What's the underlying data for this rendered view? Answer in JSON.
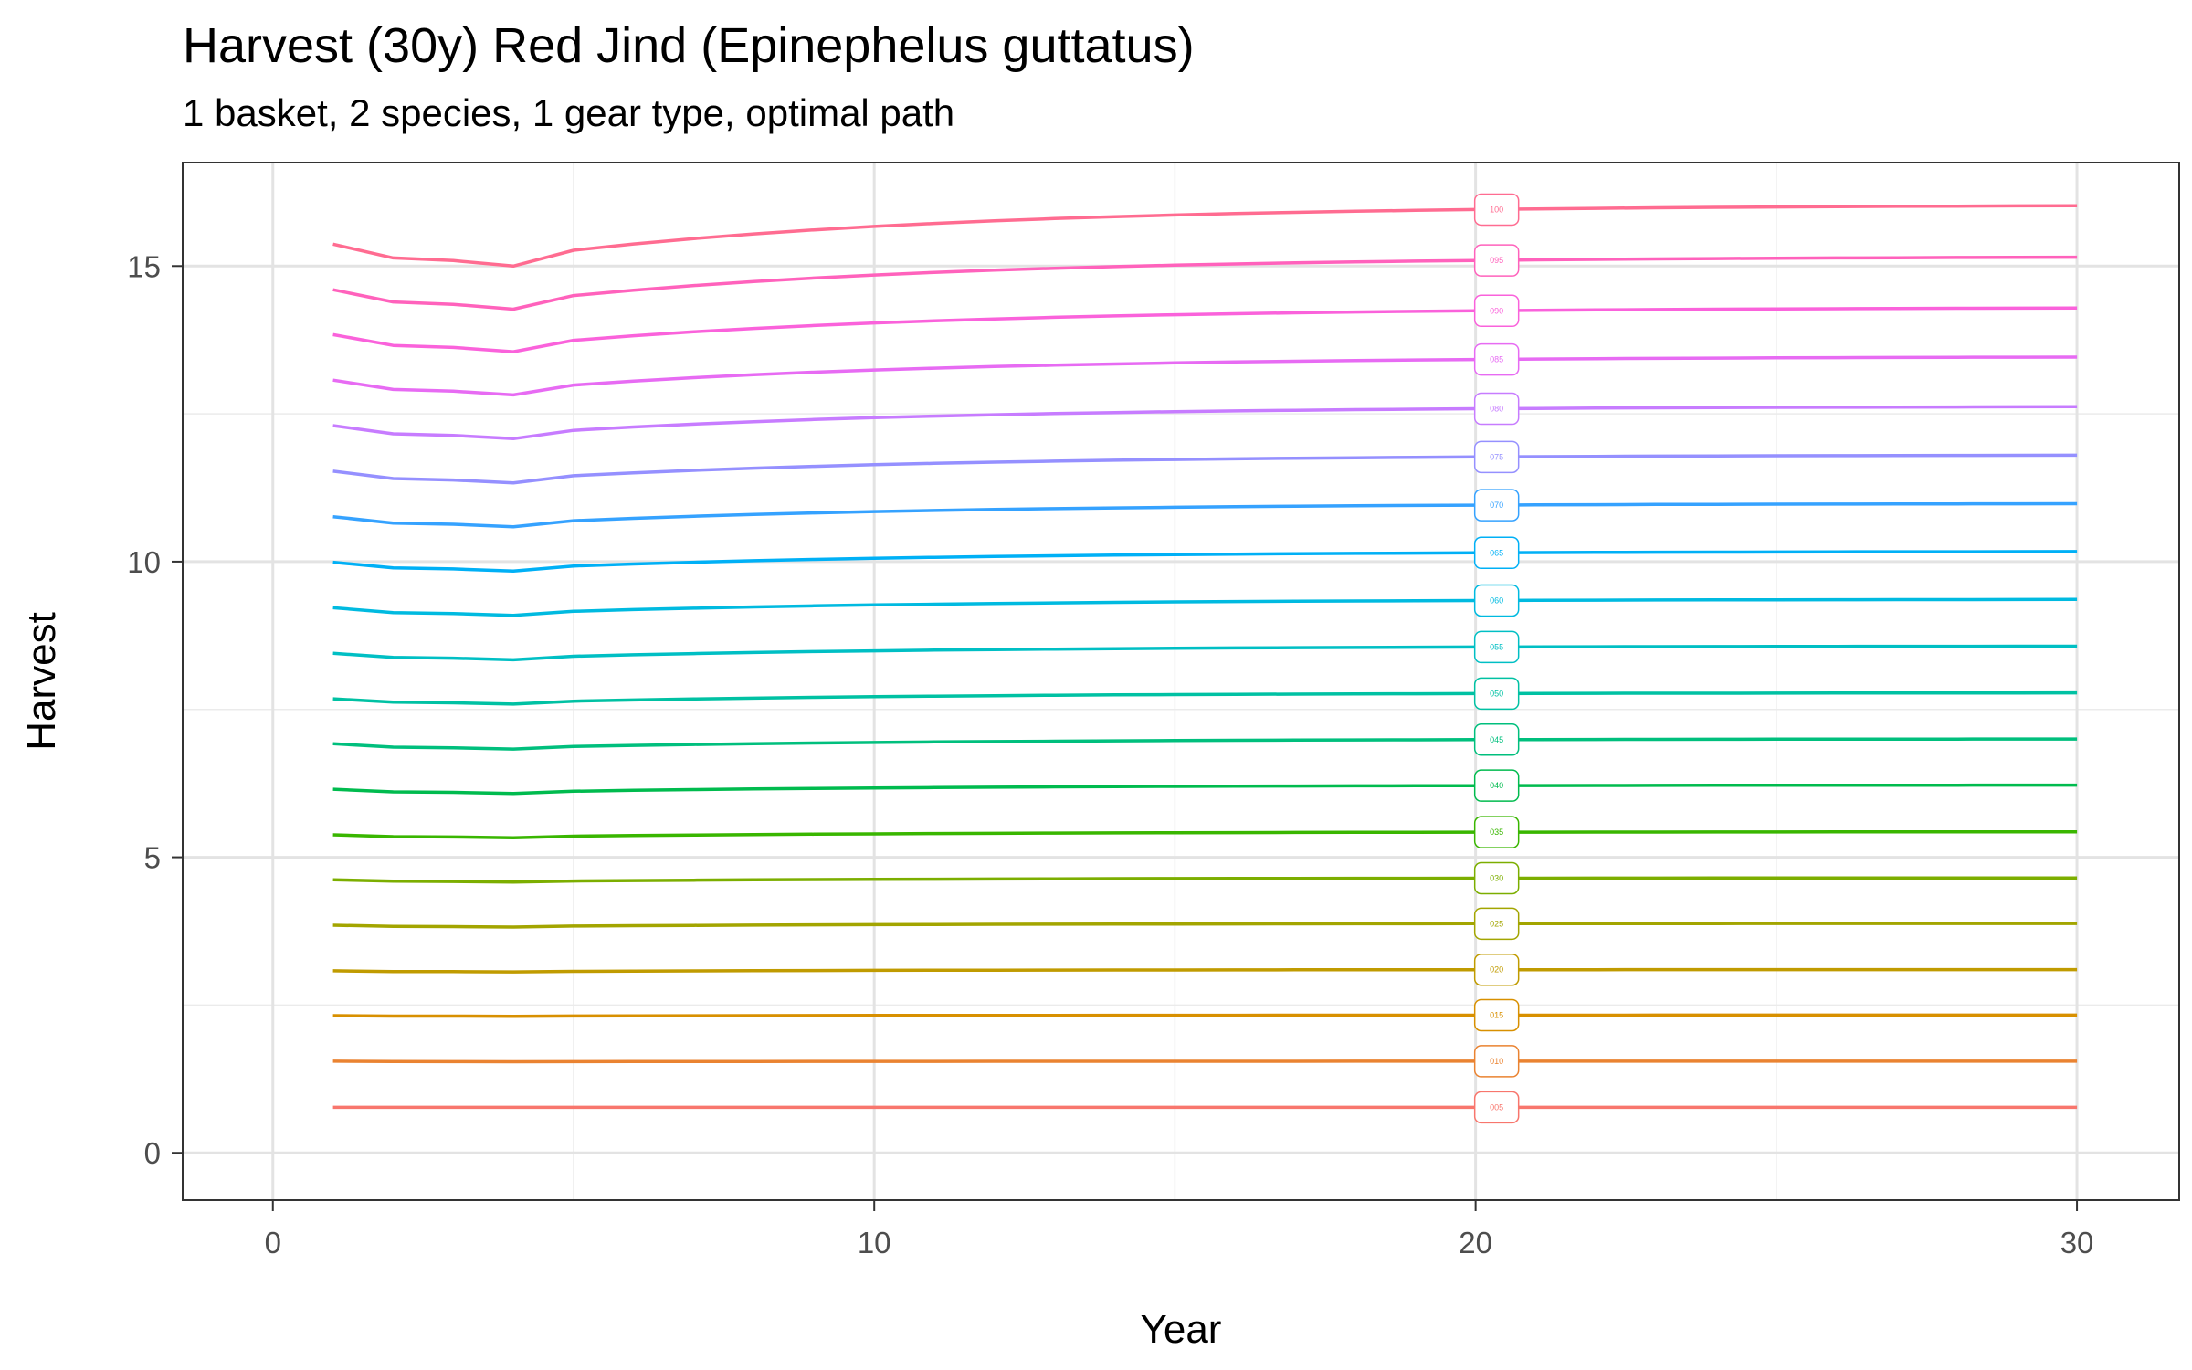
{
  "chart_data": {
    "type": "line",
    "title": "Harvest (30y) Red Jind (Epinephelus guttatus)",
    "subtitle": "1 basket, 2 species, 1 gear type, optimal path",
    "xlabel": "Year",
    "ylabel": "Harvest",
    "xlim": [
      -1.5,
      31.7
    ],
    "ylim": [
      -0.8,
      16.75
    ],
    "x_ticks": [
      0,
      10,
      20,
      30
    ],
    "y_ticks": [
      0,
      5,
      10,
      15
    ],
    "grid": true,
    "legend": "none",
    "label_x": 20.35,
    "x": [
      1,
      2,
      3,
      4,
      5,
      6,
      7,
      8,
      9,
      10,
      11,
      12,
      13,
      14,
      15,
      16,
      17,
      18,
      19,
      20,
      21,
      22,
      23,
      24,
      25,
      26,
      27,
      28,
      29,
      30
    ],
    "series": [
      {
        "name": "005",
        "color": "#F8766D",
        "start": 0.77,
        "min": 0.77,
        "end": 0.77
      },
      {
        "name": "010",
        "color": "#EA8331",
        "start": 1.55,
        "min": 1.54,
        "end": 1.55
      },
      {
        "name": "015",
        "color": "#D89000",
        "start": 2.32,
        "min": 2.31,
        "end": 2.33
      },
      {
        "name": "020",
        "color": "#C09B00",
        "start": 3.08,
        "min": 3.06,
        "end": 3.1
      },
      {
        "name": "025",
        "color": "#A3A500",
        "start": 3.85,
        "min": 3.82,
        "end": 3.88
      },
      {
        "name": "030",
        "color": "#7CAE00",
        "start": 4.62,
        "min": 4.58,
        "end": 4.65
      },
      {
        "name": "035",
        "color": "#39B600",
        "start": 5.38,
        "min": 5.33,
        "end": 5.43
      },
      {
        "name": "040",
        "color": "#00BB4E",
        "start": 6.15,
        "min": 6.08,
        "end": 6.22
      },
      {
        "name": "045",
        "color": "#00BF7D",
        "start": 6.92,
        "min": 6.83,
        "end": 7.0
      },
      {
        "name": "050",
        "color": "#00C1A3",
        "start": 7.68,
        "min": 7.59,
        "end": 7.78
      },
      {
        "name": "055",
        "color": "#00BFC4",
        "start": 8.45,
        "min": 8.34,
        "end": 8.57
      },
      {
        "name": "060",
        "color": "#00BAE0",
        "start": 9.22,
        "min": 9.09,
        "end": 9.36
      },
      {
        "name": "065",
        "color": "#00B0F6",
        "start": 9.99,
        "min": 9.84,
        "end": 10.17
      },
      {
        "name": "070",
        "color": "#35A2FF",
        "start": 10.76,
        "min": 10.59,
        "end": 10.98
      },
      {
        "name": "075",
        "color": "#9590FF",
        "start": 11.53,
        "min": 11.33,
        "end": 11.8
      },
      {
        "name": "080",
        "color": "#C77CFF",
        "start": 12.3,
        "min": 12.08,
        "end": 12.62
      },
      {
        "name": "085",
        "color": "#E76BF3",
        "start": 13.07,
        "min": 12.82,
        "end": 13.46
      },
      {
        "name": "090",
        "color": "#FA62DB",
        "start": 13.84,
        "min": 13.55,
        "end": 14.29
      },
      {
        "name": "095",
        "color": "#FF62BC",
        "start": 14.6,
        "min": 14.27,
        "end": 15.15
      },
      {
        "name": "100",
        "color": "#FF6C91",
        "start": 15.37,
        "min": 15.0,
        "end": 16.02
      }
    ]
  }
}
